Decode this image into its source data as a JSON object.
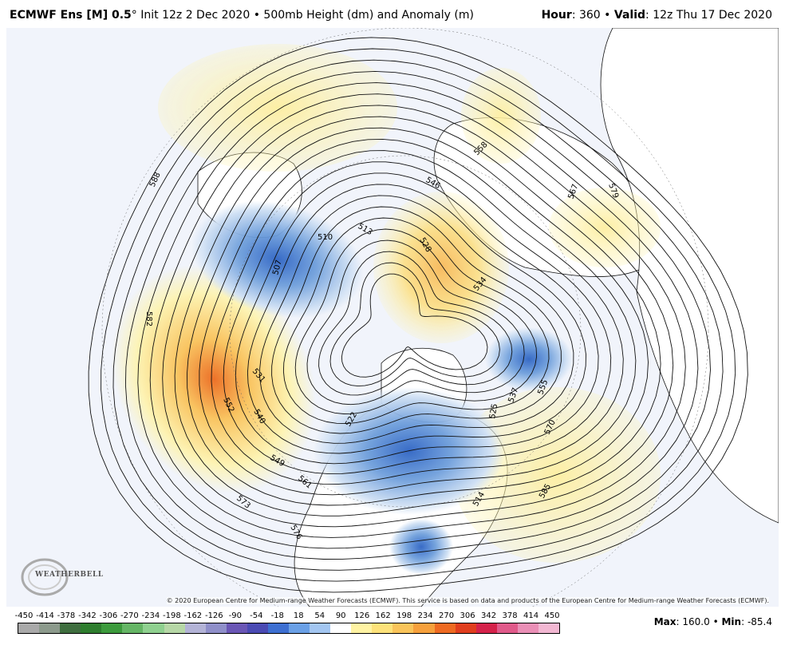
{
  "header": {
    "model": "ECMWF Ens [M] 0.5",
    "degree": "°",
    "init": "Init 12z 2 Dec 2020",
    "bullet": "•",
    "product": "500mb Height (dm) and Anomaly (m)",
    "hour_label": "Hour",
    "hour_value": "360",
    "valid_label": "Valid",
    "valid_value": "12z Thu 17 Dec 2020"
  },
  "map": {
    "contour_labels": [
      "588",
      "582",
      "573",
      "561",
      "549",
      "540",
      "531",
      "552",
      "522",
      "510",
      "513",
      "507",
      "546",
      "528",
      "534",
      "558",
      "567",
      "579",
      "555",
      "537",
      "525",
      "570",
      "585",
      "576",
      "514"
    ],
    "anomaly_colors": {
      "positive_light": "#fdf3b0",
      "positive_mid": "#f9c25a",
      "positive_strong": "#ec6a1e",
      "negative_light": "#cfe0f4",
      "negative_mid": "#6f9fdc",
      "negative_strong": "#2e64c4"
    }
  },
  "copyright": "© 2020 European Centre for Medium-range Weather Forecasts (ECMWF). This service is based on data and products of the European Centre for Medium-range Weather Forecasts (ECMWF).",
  "logo": {
    "text": "WEATHERBELL"
  },
  "scale": {
    "labels": [
      "-450",
      "-414",
      "-378",
      "-342",
      "-306",
      "-270",
      "-234",
      "-198",
      "-162",
      "-126",
      "-90",
      "-54",
      "-18",
      "18",
      "54",
      "90",
      "126",
      "162",
      "198",
      "234",
      "270",
      "306",
      "342",
      "378",
      "414",
      "450"
    ],
    "colors": [
      "#a9a9a9",
      "#8c9a8c",
      "#3f6e3f",
      "#2e7d2e",
      "#3c9a3c",
      "#65b565",
      "#8fd08f",
      "#b6d7a6",
      "#b3b3d6",
      "#8f8fc9",
      "#6a56b5",
      "#4a4ab3",
      "#3d6fd1",
      "#6aa0e6",
      "#a3c6f1",
      "#ffffff",
      "#fff3a3",
      "#fde27a",
      "#f9c45a",
      "#f6a03c",
      "#ee6a22",
      "#e03e1e",
      "#d4224a",
      "#e05a8a",
      "#ea8fb6",
      "#f2b7d2"
    ]
  },
  "stats": {
    "max_label": "Max",
    "max_value": "160.0",
    "min_label": "Min",
    "min_value": "-85.4"
  }
}
